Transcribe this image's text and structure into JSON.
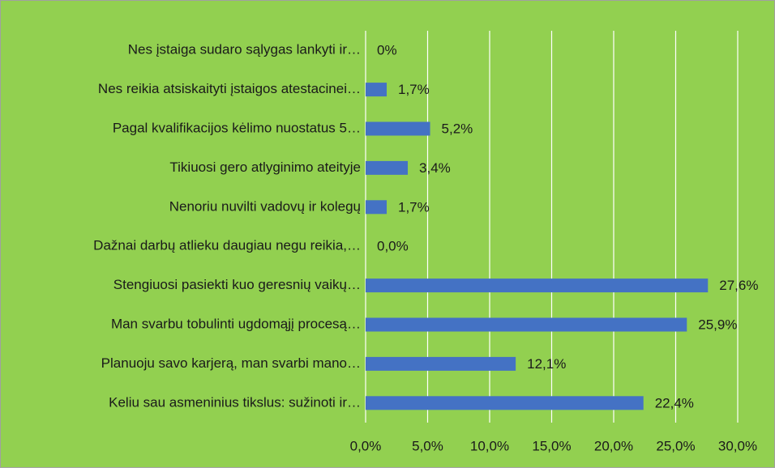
{
  "chart_data": {
    "type": "bar",
    "orientation": "horizontal",
    "categories": [
      "Nes įstaiga sudaro sąlygas lankyti ir…",
      "Nes reikia atsiskaityti įstaigos atestacinei…",
      "Pagal kvalifikacijos kėlimo nuostatus 5…",
      "Tikiuosi gero atlyginimo ateityje",
      "Nenoriu nuvilti vadovų ir kolegų",
      "Dažnai darbų atlieku daugiau negu reikia,…",
      "Stengiuosi pasiekti kuo geresnių vaikų…",
      "Man svarbu tobulinti ugdomąjį procesą…",
      "Planuoju savo karjerą, man svarbi mano…",
      "Keliu sau asmeninius tikslus: sužinoti ir…"
    ],
    "values": [
      0,
      1.7,
      5.2,
      3.4,
      1.7,
      0,
      27.6,
      25.9,
      12.1,
      22.4
    ],
    "value_labels": [
      "0%",
      "1,7%",
      "5,2%",
      "3,4%",
      "1,7%",
      "0,0%",
      "27,6%",
      "25,9%",
      "12,1%",
      "22,4%"
    ],
    "color": "#4472c4",
    "xlim": [
      0,
      30
    ],
    "xticks": [
      {
        "value": 0,
        "label": "0,0%"
      },
      {
        "value": 5,
        "label": "5,0%"
      },
      {
        "value": 10,
        "label": "10,0%"
      },
      {
        "value": 15,
        "label": "15,0%"
      },
      {
        "value": 20,
        "label": "20,0%"
      },
      {
        "value": 25,
        "label": "25,0%"
      },
      {
        "value": 30,
        "label": "30,0%"
      }
    ],
    "grid": true
  }
}
